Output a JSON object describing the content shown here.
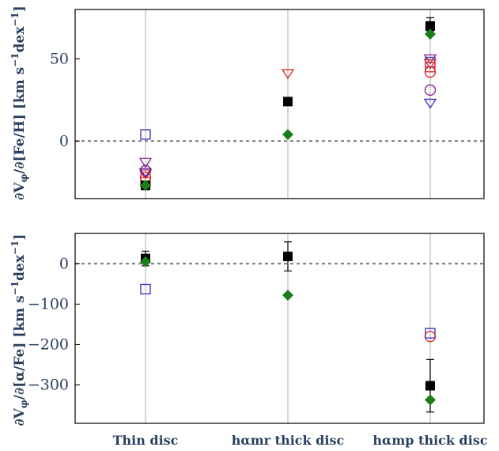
{
  "chart_data": [
    {
      "type": "scatter",
      "panel": "top",
      "ylabel": "∂V_φ/∂[Fe/H] [km s⁻¹dex⁻¹]",
      "ylim": [
        -35,
        80
      ],
      "yticks": [
        0,
        50
      ],
      "categories": [
        "Thin disc",
        "hαmr thick disc",
        "hαmp thick disc"
      ],
      "reference_line": 0,
      "grid": "vertical lines at categories",
      "series": [
        {
          "marker": "square-filled",
          "color": "#000000",
          "values": [
            -27,
            24,
            70
          ],
          "yerr": [
            [
              2,
              2
            ],
            [
              2,
              2
            ],
            [
              3,
              5
            ]
          ]
        },
        {
          "marker": "diamond-filled",
          "color": "#1a7d1a",
          "values": [
            -27,
            4,
            65
          ]
        },
        {
          "marker": "square-open",
          "color": "#3030d0",
          "values": [
            4,
            null,
            48
          ]
        },
        {
          "marker": "triangle-down-open",
          "color": "#dd2020",
          "values": [
            -20,
            41,
            47
          ]
        },
        {
          "marker": "triangle-down-open",
          "color": "#8a1a8a",
          "values": [
            -13,
            null,
            50
          ]
        },
        {
          "marker": "triangle-down-open",
          "color": "#3030d0",
          "values": [
            -19,
            null,
            23
          ]
        },
        {
          "marker": "circle-open",
          "color": "#8a1a8a",
          "values": [
            -18,
            null,
            31
          ]
        },
        {
          "marker": "circle-open",
          "color": "#dd2020",
          "values": [
            -22,
            null,
            42
          ]
        },
        {
          "marker": "square-open",
          "color": "#dd2020",
          "values": [
            -25,
            null,
            45
          ]
        }
      ]
    },
    {
      "type": "scatter",
      "panel": "bottom",
      "ylabel": "∂V_φ/∂[α/Fe] [km s⁻¹dex⁻¹]",
      "ylim": [
        -395,
        75
      ],
      "yticks": [
        0,
        -100,
        -200,
        -300
      ],
      "categories": [
        "Thin disc",
        "hαmr thick disc",
        "hαmp thick disc"
      ],
      "reference_line": 0,
      "grid": "vertical lines at categories",
      "series": [
        {
          "marker": "square-filled",
          "color": "#000000",
          "values": [
            13,
            18,
            -302
          ],
          "yerr": [
            [
              18,
              18
            ],
            [
              36,
              36
            ],
            [
              65,
              65
            ]
          ]
        },
        {
          "marker": "diamond-filled",
          "color": "#1a7d1a",
          "values": [
            5,
            -78,
            -337
          ]
        },
        {
          "marker": "square-open",
          "color": "#3030d0",
          "values": [
            -63,
            null,
            -172
          ]
        },
        {
          "marker": "circle-open",
          "color": "#dd2020",
          "values": [
            null,
            null,
            -180
          ]
        }
      ]
    }
  ],
  "labels": {
    "top_ylabel_main": "∂V",
    "top_ylabel_sub": "φ",
    "top_ylabel_rest": "/∂[Fe/H] [km s",
    "top_ylabel_sup1": "−1",
    "top_ylabel_dex": "dex",
    "top_ylabel_sup2": "−1",
    "top_ylabel_end": "]",
    "bottom_ylabel_main": "∂V",
    "bottom_ylabel_sub": "φ",
    "bottom_ylabel_rest": "/∂[α/Fe] [km s",
    "bottom_ylabel_sup1": "−1",
    "bottom_ylabel_dex": "dex",
    "bottom_ylabel_sup2": "−1",
    "bottom_ylabel_end": "]"
  }
}
